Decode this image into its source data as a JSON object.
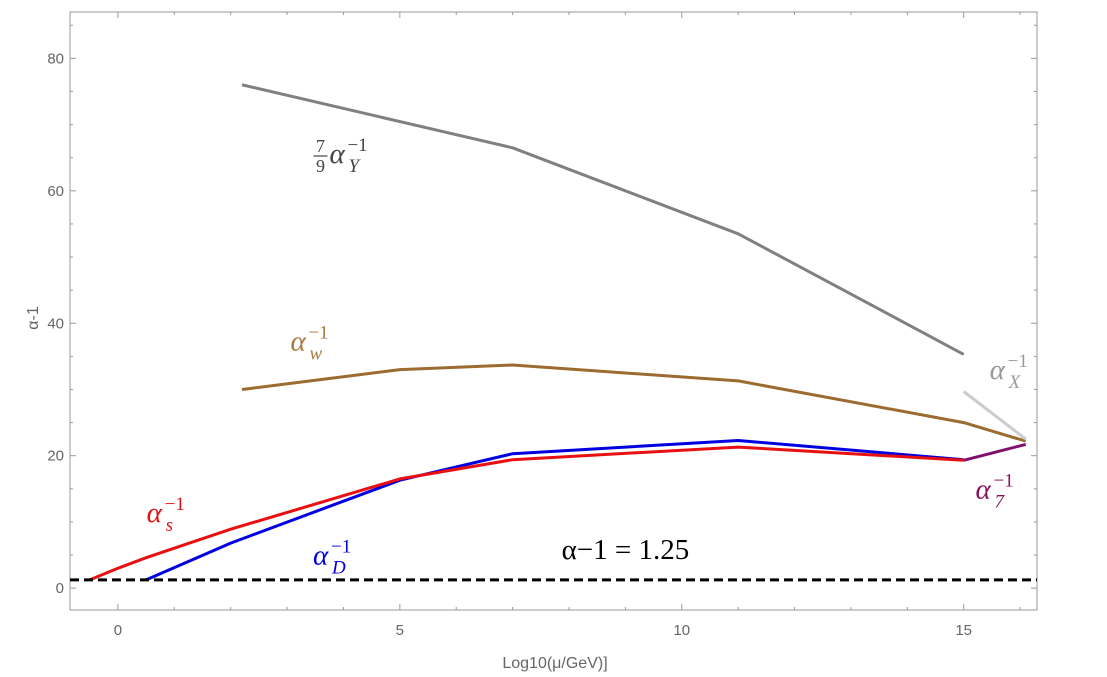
{
  "chart_data": {
    "type": "line",
    "xlabel": "Log10(μ/GeV)]",
    "ylabel": "α-1",
    "xlim": [
      -0.85,
      16.3
    ],
    "ylim": [
      -3.3,
      87
    ],
    "x_ticks": [
      0,
      5,
      10,
      15
    ],
    "y_ticks": [
      0,
      20,
      40,
      60,
      80
    ],
    "grid": false,
    "series": [
      {
        "color": "#808080",
        "x": [
          2.2,
          7.0,
          11.0,
          15.0
        ],
        "y": [
          76.0,
          66.5,
          53.5,
          35.3
        ]
      },
      {
        "color": "#9c6b30",
        "x": [
          2.2,
          5.0,
          7.0,
          11.0,
          15.0,
          16.1
        ],
        "y": [
          30.0,
          33.0,
          33.7,
          31.3,
          25.0,
          22.2
        ]
      },
      {
        "color": "#0000e0",
        "x": [
          0.5,
          2.0,
          5.0,
          7.0,
          11.0,
          15.0
        ],
        "y": [
          1.25,
          6.8,
          16.3,
          20.3,
          22.3,
          19.4
        ]
      },
      {
        "color": "#e81010",
        "x": [
          -0.5,
          0.0,
          0.5,
          2.0,
          5.0,
          7.0,
          11.0,
          15.0
        ],
        "y": [
          1.25,
          3.0,
          4.6,
          8.9,
          16.5,
          19.4,
          21.3,
          19.3
        ]
      },
      {
        "color": "#cccccc",
        "x": [
          15.0,
          16.1
        ],
        "y": [
          29.7,
          22.5
        ]
      },
      {
        "color": "#80106e",
        "x": [
          15.0,
          16.1
        ],
        "y": [
          19.3,
          21.7
        ]
      }
    ],
    "reference_line": {
      "y": 1.25,
      "style": "dashed",
      "color": "#000000",
      "label": "α−1 = 1.25",
      "label_pos": [
        9.0,
        4.4
      ]
    },
    "annotations": [
      {
        "base": "α",
        "sup": "−1",
        "sub": "Y",
        "prefix_num": "7",
        "prefix_den": "9",
        "color": "#444444",
        "pos": [
          4.0,
          64.2
        ]
      },
      {
        "base": "α",
        "sup": "−1",
        "sub": "w",
        "color": "#a67a40",
        "pos": [
          3.45,
          35.9
        ]
      },
      {
        "base": "α",
        "sup": "−1",
        "sub": "X",
        "color": "#999999",
        "pos": [
          15.85,
          31.6
        ]
      },
      {
        "base": "α",
        "sup": "−1",
        "sub": "s",
        "color": "#e01010",
        "pos": [
          0.9,
          10.0
        ]
      },
      {
        "base": "α",
        "sup": "−1",
        "sub": "D",
        "color": "#0000e0",
        "pos": [
          3.85,
          3.6
        ]
      },
      {
        "base": "α",
        "sup": "−1",
        "sub": "7",
        "color": "#8a1060",
        "pos": [
          15.6,
          13.5
        ]
      }
    ]
  }
}
